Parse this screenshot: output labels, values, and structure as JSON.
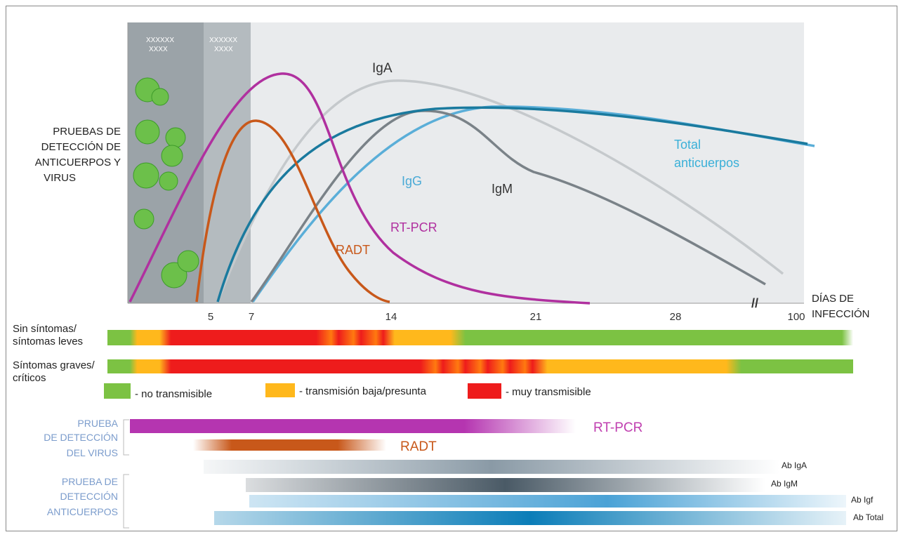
{
  "chart_panel": {
    "boxes": [
      [
        "XXXXXX",
        "XXXX"
      ],
      [
        "XXXXXX",
        "XXXX"
      ]
    ],
    "y_label": [
      "PRUEBAS DE",
      "DETECCIÓN DE",
      "ANTICUERPOS Y",
      "VIRUS"
    ],
    "curves": {
      "iga": "IgA",
      "igg": "IgG",
      "igm": "IgM",
      "total": [
        "Total",
        "anticuerpos"
      ],
      "rtpcr": "RT-PCR",
      "radt": "RADT"
    },
    "x_axis": {
      "ticks": [
        5,
        7,
        14,
        21,
        28,
        100
      ],
      "label": [
        "DÍAS DE",
        "INFECCIÓN"
      ]
    }
  },
  "transmission": {
    "rows": [
      [
        "Sin síntomas/",
        "síntomas leves"
      ],
      [
        "Síntomas graves/",
        "críticos"
      ]
    ],
    "legend": [
      "- no transmisible",
      "- transmisión baja/presunta",
      "- muy transmisible"
    ]
  },
  "tests": {
    "virus_label": [
      "PRUEBA",
      "DE DETECCIÓN",
      "DEL VIRUS"
    ],
    "antibody_label": [
      "PRUEBA DE",
      "DETECCIÓN",
      "ANTICUERPOS"
    ],
    "bars": [
      "RT-PCR",
      "RADT",
      "Ab IgA",
      "Ab IgM",
      "Ab Igf",
      "Ab Total"
    ]
  }
}
